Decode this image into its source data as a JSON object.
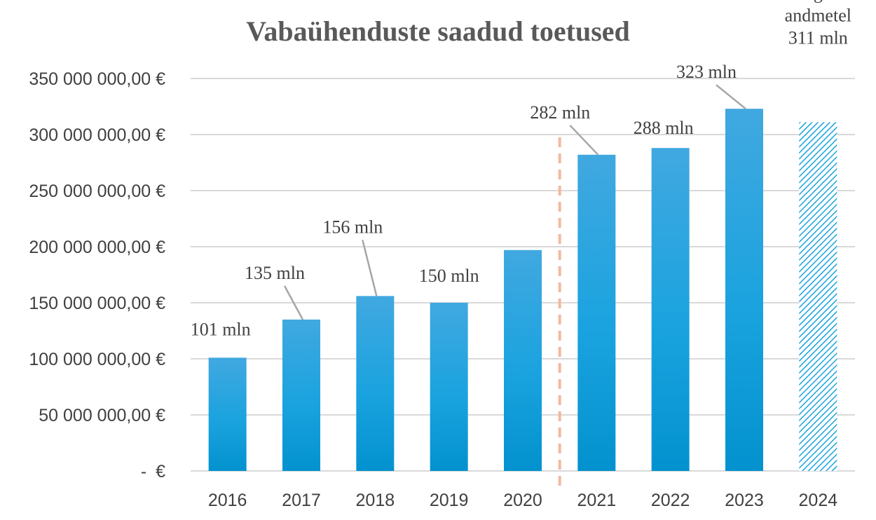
{
  "colors": {
    "bar": "#1aa3df",
    "bar_top": "#41a8e0",
    "bar_bottom": "#0392cf",
    "grid": "#d9d9d9",
    "divider": "#f4b8a0",
    "leader": "#a6a6a6",
    "estimate_hatch": "#1aa3df"
  },
  "chart_data": {
    "type": "bar",
    "title": "Vabaühenduste saadud toetused",
    "xlabel": "",
    "ylabel": "",
    "categories": [
      "2016",
      "2017",
      "2018",
      "2019",
      "2020",
      "2021",
      "2022",
      "2023",
      "2024"
    ],
    "values": [
      101000000,
      135000000,
      156000000,
      150000000,
      197000000,
      282000000,
      288000000,
      323000000,
      311000000
    ],
    "ylim": [
      0,
      350000000
    ],
    "yticks": [
      0,
      50000000,
      100000000,
      150000000,
      200000000,
      250000000,
      300000000,
      350000000
    ],
    "ytick_labels": [
      "-   €",
      "50 000 000,00 €",
      "100 000 000,00 €",
      "150 000 000,00 €",
      "200 000 000,00 €",
      "250 000 000,00 €",
      "300 000 000,00 €",
      "350 000 000,00 €"
    ],
    "grid": true,
    "estimated_category": "2024",
    "divider_between": [
      "2020",
      "2021"
    ],
    "data_labels": [
      {
        "category": "2016",
        "lines": [
          "101 mln"
        ]
      },
      {
        "category": "2017",
        "lines": [
          "135 mln"
        ]
      },
      {
        "category": "2018",
        "lines": [
          "156 mln"
        ]
      },
      {
        "category": "2019",
        "lines": [
          "150 mln"
        ]
      },
      {
        "category": "2021",
        "lines": [
          "282 mln"
        ]
      },
      {
        "category": "2022",
        "lines": [
          "288 mln"
        ]
      },
      {
        "category": "2023",
        "lines": [
          "323 mln"
        ]
      },
      {
        "category": "2024",
        "lines": [
          "esialgsetel",
          "andmetel",
          "311 mln"
        ]
      }
    ]
  }
}
